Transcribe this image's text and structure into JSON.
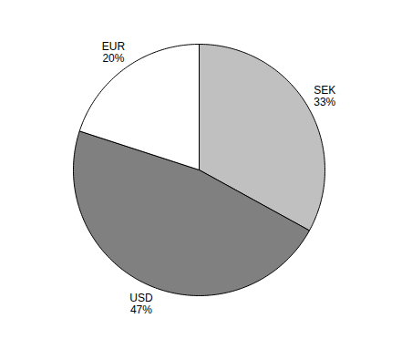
{
  "chart_data": {
    "type": "pie",
    "categories": [
      "SEK",
      "USD",
      "EUR"
    ],
    "values": [
      33,
      47,
      20
    ],
    "value_labels": [
      "33%",
      "47%",
      "20%"
    ],
    "colors": [
      "#c0c0c0",
      "#808080",
      "#ffffff"
    ],
    "data_labels": true
  }
}
